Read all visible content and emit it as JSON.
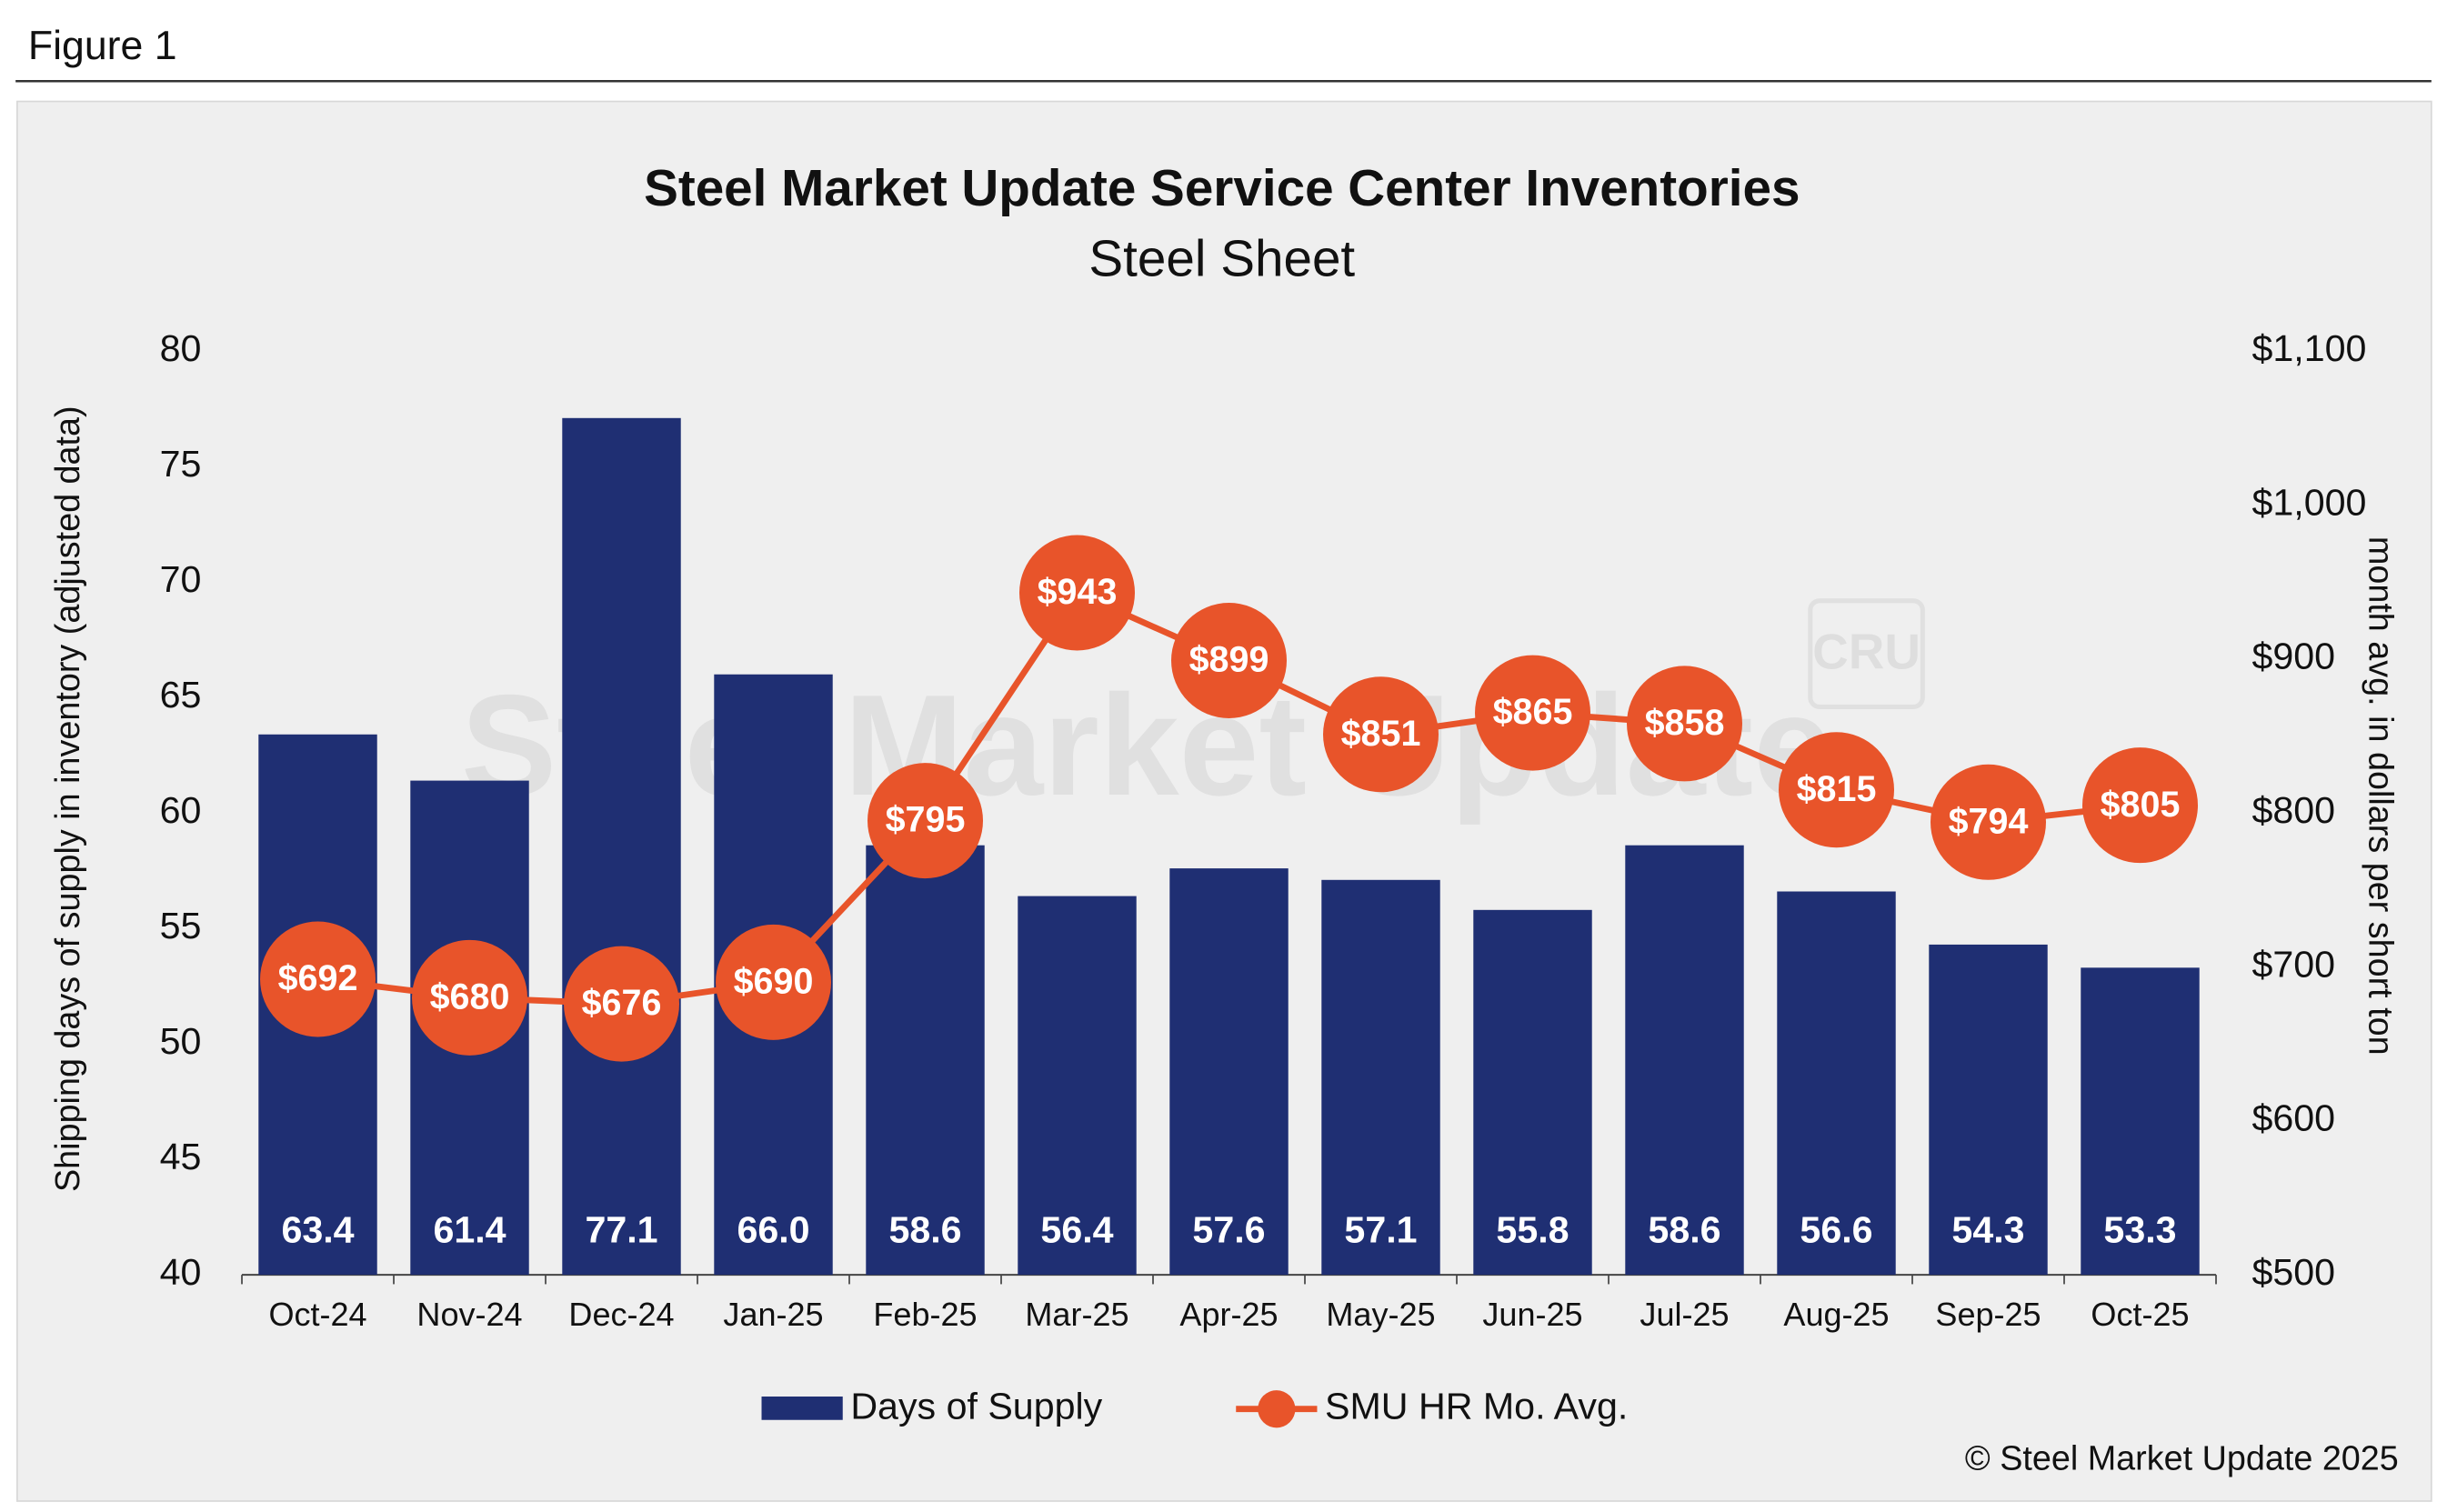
{
  "figure_label": "Figure 1",
  "copyright": "© Steel Market Update 2025",
  "chart_data": {
    "type": "bar-line",
    "title": "Steel Market Update Service Center Inventories",
    "subtitle": "Steel Sheet",
    "watermark": "Steel Market Update",
    "logo": "CRU",
    "y_label": "Shipping days of supply in inventory (adjusted data)",
    "y2_label": "month avg. in dollars per short ton",
    "categories": [
      "Oct-24",
      "Nov-24",
      "Dec-24",
      "Jan-25",
      "Feb-25",
      "Mar-25",
      "Apr-25",
      "May-25",
      "Jun-25",
      "Jul-25",
      "Aug-25",
      "Sep-25",
      "Oct-25"
    ],
    "series": [
      {
        "name": "Days of Supply",
        "type": "bar",
        "color": "#1f2f73",
        "values": [
          63.4,
          61.4,
          77.1,
          66.0,
          58.6,
          56.4,
          57.6,
          57.1,
          55.8,
          58.6,
          56.6,
          54.3,
          53.3
        ],
        "value_labels": [
          "63.4",
          "61.4",
          "77.1",
          "66.0",
          "58.6",
          "56.4",
          "57.6",
          "57.1",
          "55.8",
          "58.6",
          "56.6",
          "54.3",
          "53.3"
        ]
      },
      {
        "name": "SMU HR Mo. Avg.",
        "type": "line",
        "axis": "y2",
        "color": "#e8542a",
        "values": [
          692,
          680,
          676,
          690,
          795,
          943,
          899,
          851,
          865,
          858,
          815,
          794,
          805
        ],
        "value_labels": [
          "$692",
          "$680",
          "$676",
          "$690",
          "$795",
          "$943",
          "$899",
          "$851",
          "$865",
          "$858",
          "$815",
          "$794",
          "$805"
        ]
      }
    ],
    "ylim": [
      40,
      80
    ],
    "yticks": [
      40,
      45,
      50,
      55,
      60,
      65,
      70,
      75,
      80
    ],
    "y2lim": [
      500,
      1100
    ],
    "y2ticks": [
      {
        "value": 500,
        "label": "$500"
      },
      {
        "value": 600,
        "label": "$600"
      },
      {
        "value": 700,
        "label": "$700"
      },
      {
        "value": 800,
        "label": "$800"
      },
      {
        "value": 900,
        "label": "$900"
      },
      {
        "value": 1000,
        "label": "$1,000"
      },
      {
        "value": 1100,
        "label": "$1,100"
      }
    ],
    "grid": false,
    "legend": "bottom"
  }
}
